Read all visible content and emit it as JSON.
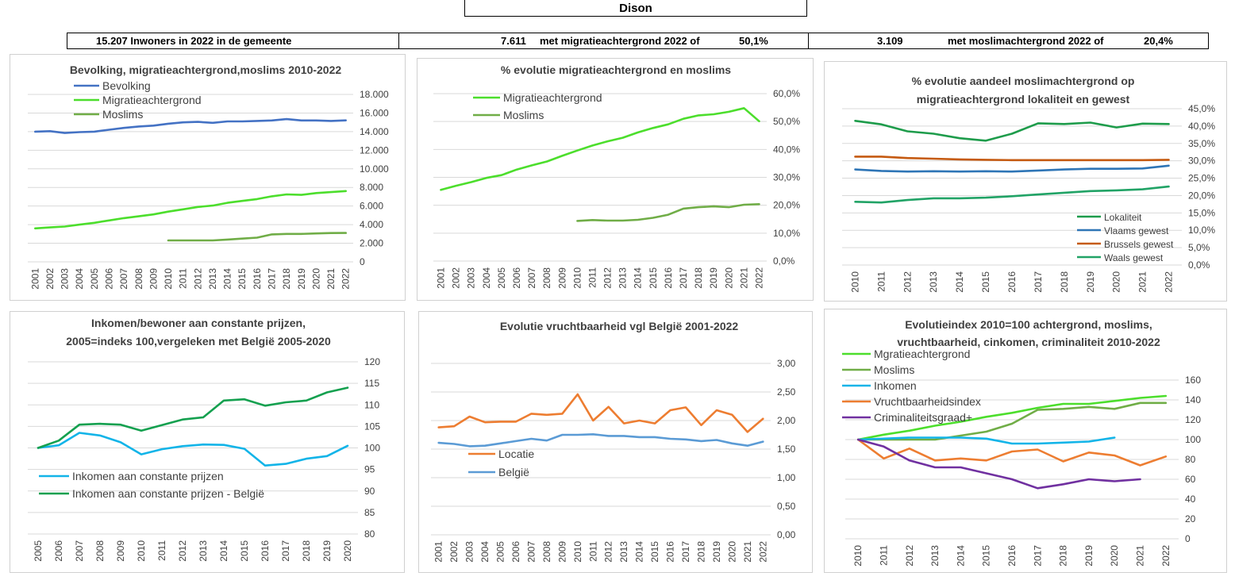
{
  "header": {
    "title": "Dison",
    "pop_text": "15.207 Inwoners in 2022 in de gemeente",
    "mig_count": "7.611",
    "mig_text": "met migratieachtergrond 2022 of",
    "mig_pct": "50,1%",
    "mos_count": "3.109",
    "mos_text": "met moslimachtergrond 2022 of",
    "mos_pct": "20,4%"
  },
  "chart_data": [
    {
      "id": "c1",
      "type": "line",
      "title": [
        "Bevolking, migratieachtergrond,moslims  2010-2022"
      ],
      "x": [
        "2001",
        "2002",
        "2003",
        "2004",
        "2005",
        "2006",
        "2007",
        "2008",
        "2009",
        "2010",
        "2011",
        "2012",
        "2013",
        "2014",
        "2015",
        "2016",
        "2017",
        "2018",
        "2019",
        "2020",
        "2021",
        "2022"
      ],
      "ylim": [
        0,
        18000
      ],
      "yticks": [
        0,
        2000,
        4000,
        6000,
        8000,
        10000,
        12000,
        14000,
        16000,
        18000
      ],
      "ytick_labels": [
        "0",
        "2.000",
        "4.000",
        "6.000",
        "8.000",
        "10.000",
        "12.000",
        "14.000",
        "16.000",
        "18.000"
      ],
      "grid": true,
      "legend_position": "top-left",
      "series": [
        {
          "name": "Bevolking",
          "color": "#4472c4",
          "values": [
            14000,
            14050,
            13850,
            13950,
            14000,
            14200,
            14400,
            14550,
            14650,
            14850,
            15000,
            15050,
            14950,
            15100,
            15100,
            15150,
            15200,
            15350,
            15200,
            15200,
            15150,
            15207
          ]
        },
        {
          "name": "Migratieachtergrond",
          "color": "#4cde2c",
          "values": [
            3600,
            3700,
            3800,
            4000,
            4200,
            4450,
            4700,
            4900,
            5100,
            5400,
            5650,
            5900,
            6050,
            6350,
            6550,
            6750,
            7050,
            7250,
            7200,
            7400,
            7500,
            7611
          ]
        },
        {
          "name": "Moslims",
          "color": "#70ad47",
          "values": [
            null,
            null,
            null,
            null,
            null,
            null,
            null,
            null,
            null,
            2300,
            2300,
            2300,
            2300,
            2400,
            2500,
            2600,
            2950,
            3000,
            3000,
            3050,
            3100,
            3109
          ]
        }
      ]
    },
    {
      "id": "c2",
      "type": "line",
      "title": [
        "% evolutie migratieachtergrond  en moslims"
      ],
      "x": [
        "2001",
        "2002",
        "2003",
        "2004",
        "2005",
        "2006",
        "2007",
        "2008",
        "2009",
        "2010",
        "2011",
        "2012",
        "2013",
        "2014",
        "2015",
        "2016",
        "2017",
        "2018",
        "2019",
        "2020",
        "2021",
        "2022"
      ],
      "ylim": [
        0,
        60
      ],
      "yticks": [
        0,
        10,
        20,
        30,
        40,
        50,
        60
      ],
      "ytick_labels": [
        "0,0%",
        "10,0%",
        "20,0%",
        "30,0%",
        "40,0%",
        "50,0%",
        "60,0%"
      ],
      "grid": true,
      "legend_position": "top-left",
      "series": [
        {
          "name": "Migratieachtergrond",
          "color": "#4cde2c",
          "values": [
            25.5,
            27,
            28.3,
            29.8,
            30.8,
            32.8,
            34.3,
            35.7,
            37.7,
            39.6,
            41.4,
            42.9,
            44.2,
            46.1,
            47.7,
            49,
            51,
            52.2,
            52.6,
            53.5,
            54.8,
            50.1
          ]
        },
        {
          "name": "Moslims",
          "color": "#70ad47",
          "values": [
            null,
            null,
            null,
            null,
            null,
            null,
            null,
            null,
            null,
            14.4,
            14.7,
            14.5,
            14.5,
            14.8,
            15.5,
            16.6,
            18.8,
            19.3,
            19.6,
            19.3,
            20.2,
            20.4
          ]
        }
      ]
    },
    {
      "id": "c3",
      "type": "line",
      "title": [
        "% evolutie aandeel moslimachtergrond op",
        "migratieachtergrond lokaliteit  en gewest"
      ],
      "x": [
        "2010",
        "2011",
        "2012",
        "2013",
        "2014",
        "2015",
        "2016",
        "2017",
        "2018",
        "2019",
        "2020",
        "2021",
        "2022"
      ],
      "ylim": [
        0,
        45
      ],
      "yticks": [
        0,
        5,
        10,
        15,
        20,
        25,
        30,
        35,
        40,
        45
      ],
      "ytick_labels": [
        "0,0%",
        "5,0%",
        "10,0%",
        "15,0%",
        "20,0%",
        "25,0%",
        "30,0%",
        "35,0%",
        "40,0%",
        "45,0%"
      ],
      "grid": true,
      "legend_position": "bottom-right",
      "series": [
        {
          "name": "Lokaliteit",
          "color": "#1e9c4b",
          "values": [
            41.5,
            40.5,
            38.5,
            37.8,
            36.5,
            35.8,
            37.8,
            40.8,
            40.6,
            41,
            39.6,
            40.7,
            40.6
          ]
        },
        {
          "name": "Vlaams gewest",
          "color": "#2e75b6",
          "values": [
            27.5,
            27.1,
            26.9,
            27,
            26.9,
            27,
            26.9,
            27.2,
            27.5,
            27.7,
            27.7,
            27.8,
            28.6
          ]
        },
        {
          "name": "Brussels gewest",
          "color": "#c55a11",
          "values": [
            31.2,
            31.2,
            30.8,
            30.6,
            30.4,
            30.3,
            30.2,
            30.2,
            30.2,
            30.2,
            30.2,
            30.2,
            30.3
          ]
        },
        {
          "name": "Waals gewest",
          "color": "#21a366",
          "values": [
            18.2,
            18,
            18.7,
            19.2,
            19.2,
            19.4,
            19.8,
            20.3,
            20.8,
            21.3,
            21.5,
            21.8,
            22.6
          ]
        }
      ]
    },
    {
      "id": "c4",
      "type": "line",
      "title": [
        "Inkomen/bewoner aan constante prijzen,",
        "2005=indeks 100,vergeleken met België 2005-2020"
      ],
      "x": [
        "2005",
        "2006",
        "2007",
        "2008",
        "2009",
        "2010",
        "2011",
        "2012",
        "2013",
        "2014",
        "2015",
        "2016",
        "2017",
        "2018",
        "2019",
        "2020"
      ],
      "ylim": [
        80,
        120
      ],
      "yticks": [
        80,
        85,
        90,
        95,
        100,
        105,
        110,
        115,
        120
      ],
      "ytick_labels": [
        "80",
        "85",
        "90",
        "95",
        "100",
        "105",
        "110",
        "115",
        "120"
      ],
      "grid": true,
      "legend_position": "bottom-left",
      "series": [
        {
          "name": "Inkomen aan constante prijzen",
          "color": "#12b4e8",
          "values": [
            100,
            100.6,
            103.5,
            102.9,
            101.3,
            98.5,
            99.7,
            100.4,
            100.8,
            100.7,
            99.8,
            95.9,
            96.3,
            97.5,
            98.1,
            100.5
          ]
        },
        {
          "name": "Inkomen aan constante prijzen - België",
          "color": "#14a04f",
          "values": [
            100,
            101.7,
            105.4,
            105.6,
            105.4,
            104,
            105.3,
            106.6,
            107.1,
            111,
            111.3,
            109.8,
            110.6,
            111,
            112.9,
            114
          ]
        }
      ]
    },
    {
      "id": "c5",
      "type": "line",
      "title": [
        "Evolutie vruchtbaarheid vgl België 2001-2022"
      ],
      "x": [
        "2001",
        "2002",
        "2003",
        "2004",
        "2005",
        "2006",
        "2007",
        "2008",
        "2009",
        "2010",
        "2011",
        "2012",
        "2013",
        "2014",
        "2015",
        "2016",
        "2017",
        "2018",
        "2019",
        "2020",
        "2021",
        "2022"
      ],
      "ylim": [
        0,
        3
      ],
      "yticks": [
        0,
        0.5,
        1,
        1.5,
        2,
        2.5,
        3
      ],
      "ytick_labels": [
        "0,00",
        "0,50",
        "1,00",
        "1,50",
        "2,00",
        "2,50",
        "3,00"
      ],
      "grid": true,
      "legend_position": "bottom-left",
      "series": [
        {
          "name": "Locatie",
          "color": "#ed7d31",
          "values": [
            1.88,
            1.9,
            2.07,
            1.97,
            1.98,
            1.98,
            2.12,
            2.1,
            2.12,
            2.46,
            2.0,
            2.24,
            1.95,
            2.0,
            1.95,
            2.18,
            2.23,
            1.92,
            2.18,
            2.1,
            1.8,
            2.03
          ]
        },
        {
          "name": "België",
          "color": "#5b9bd5",
          "values": [
            1.61,
            1.59,
            1.55,
            1.56,
            1.6,
            1.64,
            1.68,
            1.65,
            1.75,
            1.75,
            1.76,
            1.73,
            1.73,
            1.71,
            1.71,
            1.68,
            1.67,
            1.64,
            1.66,
            1.6,
            1.56,
            1.63
          ]
        }
      ]
    },
    {
      "id": "c6",
      "type": "line",
      "title": [
        "Evolutieindex 2010=100 achtergrond, moslims,",
        "vruchtbaarheid, cinkomen, criminaliteit  2010-2022"
      ],
      "x": [
        "2010",
        "2011",
        "2012",
        "2013",
        "2014",
        "2015",
        "2016",
        "2017",
        "2018",
        "2019",
        "2020",
        "2021",
        "2022"
      ],
      "ylim": [
        0,
        160
      ],
      "yticks": [
        0,
        20,
        40,
        60,
        80,
        100,
        120,
        140,
        160
      ],
      "ytick_labels": [
        "0",
        "20",
        "40",
        "60",
        "80",
        "100",
        "120",
        "140",
        "160"
      ],
      "grid": true,
      "legend_position": "top-left",
      "series": [
        {
          "name": "Mgratieachtergrond",
          "color": "#4cde2c",
          "values": [
            100,
            105,
            109,
            114,
            118,
            123,
            127,
            132,
            136,
            136,
            139,
            142,
            144
          ]
        },
        {
          "name": "Moslims",
          "color": "#70ad47",
          "values": [
            100,
            100,
            100,
            100,
            104,
            108,
            116,
            130,
            131,
            133,
            131,
            137,
            137
          ]
        },
        {
          "name": "Inkomen",
          "color": "#12b4e8",
          "values": [
            100,
            101,
            102,
            102,
            102,
            101,
            96,
            96,
            97,
            98,
            102,
            null,
            null
          ]
        },
        {
          "name": "Vruchtbaarheidsindex",
          "color": "#ed7d31",
          "values": [
            100,
            81,
            91,
            79,
            81,
            79,
            88,
            90,
            78,
            87,
            84,
            74,
            83
          ]
        },
        {
          "name": "Criminaliteitsgraad+",
          "color": "#7030a0",
          "values": [
            100,
            93,
            79,
            72,
            72,
            66,
            60,
            51,
            55,
            60,
            58,
            60,
            null
          ]
        }
      ]
    }
  ]
}
